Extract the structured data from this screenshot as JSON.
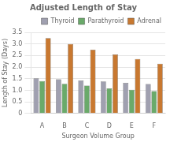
{
  "chart_data": {
    "type": "bar",
    "title": "Adjusted Length of Stay",
    "xlabel": "Surgeon Volume Group",
    "ylabel": "Length of Stay (Days)",
    "categories": [
      "A",
      "B",
      "C",
      "D",
      "E",
      "F"
    ],
    "series": [
      {
        "name": "Thyroid",
        "color": "#a0a0b0",
        "values": [
          1.52,
          1.47,
          1.42,
          1.38,
          1.32,
          1.27
        ]
      },
      {
        "name": "Parathyroid",
        "color": "#6aaa6a",
        "values": [
          1.4,
          1.28,
          1.2,
          1.08,
          1.02,
          0.96
        ]
      },
      {
        "name": "Adrenal",
        "color": "#c87830",
        "values": [
          3.25,
          3.0,
          2.75,
          2.55,
          2.35,
          2.15
        ]
      }
    ],
    "ylim": [
      0,
      3.5
    ],
    "yticks": [
      0,
      0.5,
      {
        "value": 1,
        "label": "1.0"
      },
      1.5,
      {
        "value": 2,
        "label": "2.0"
      },
      2.5,
      {
        "value": 3,
        "label": "3.0"
      },
      3.5
    ],
    "grid": true,
    "legend": "upper right"
  }
}
